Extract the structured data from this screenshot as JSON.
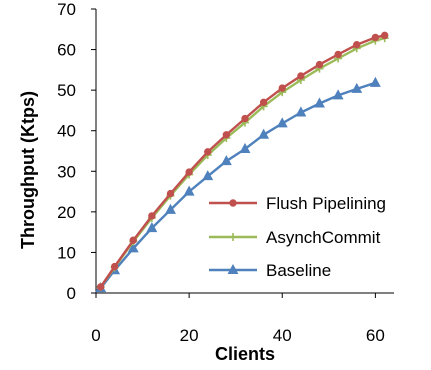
{
  "chart_data": {
    "type": "line",
    "xlabel": "Clients",
    "ylabel": "Throughput (Ktps)",
    "xlim": [
      0,
      64
    ],
    "ylim": [
      0,
      70
    ],
    "x_ticks": [
      0,
      20,
      40,
      60
    ],
    "y_ticks": [
      0,
      10,
      20,
      30,
      40,
      50,
      60,
      70
    ],
    "grid": false,
    "legend_position": "bottom-right",
    "series": [
      {
        "name": "Flush Pipelining",
        "color": "#c0504d",
        "marker": "circle",
        "x": [
          1,
          4,
          8,
          12,
          16,
          20,
          24,
          28,
          32,
          36,
          40,
          44,
          48,
          52,
          56,
          60,
          62
        ],
        "y": [
          1.5,
          6.5,
          13,
          19,
          24.5,
          29.8,
          34.8,
          39,
          43,
          47,
          50.5,
          53.5,
          56.3,
          58.8,
          61.2,
          63,
          63.5
        ]
      },
      {
        "name": "AsynchCommit",
        "color": "#9bbb59",
        "marker": "plus",
        "x": [
          1,
          4,
          8,
          12,
          16,
          20,
          24,
          28,
          32,
          36,
          40,
          44,
          48,
          52,
          56,
          60,
          62
        ],
        "y": [
          1.5,
          6.3,
          12.7,
          18.5,
          24,
          29.2,
          34,
          38.2,
          42,
          46,
          49.5,
          52.5,
          55.3,
          57.8,
          60.3,
          62.2,
          62.8
        ]
      },
      {
        "name": "Baseline",
        "color": "#4f81bd",
        "marker": "triangle",
        "x": [
          1,
          4,
          8,
          12,
          16,
          20,
          24,
          28,
          32,
          36,
          40,
          44,
          48,
          52,
          56,
          60
        ],
        "y": [
          1.2,
          5.6,
          11,
          16,
          20.5,
          25,
          28.8,
          32.5,
          35.5,
          39,
          41.8,
          44.5,
          46.7,
          48.7,
          50.3,
          51.8
        ]
      }
    ]
  }
}
